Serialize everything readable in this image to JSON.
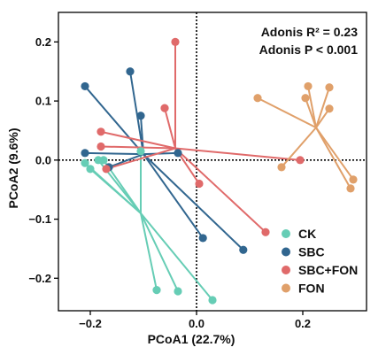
{
  "chart_data": {
    "type": "scatter",
    "title": "",
    "xlabel": "PCoA1 (22.7%)",
    "ylabel": "PCoA2 (9.6%)",
    "xlim": [
      -0.26,
      0.32
    ],
    "ylim": [
      -0.255,
      0.25
    ],
    "xticks": [
      -0.2,
      0.0,
      0.2
    ],
    "yticks": [
      -0.2,
      -0.1,
      0.0,
      0.1,
      0.2
    ],
    "xtick_labels": [
      "−0.2",
      "0.0",
      "0.2"
    ],
    "ytick_labels": [
      "−0.2",
      "−0.1",
      "0.0",
      "0.1",
      "0.2"
    ],
    "zero_lines": "dotted",
    "grid": false,
    "legend_position": "bottom-right",
    "annotations": {
      "adonis_r2": "Adonis R² = 0.23",
      "adonis_p": "Adonis P < 0.001"
    },
    "series": [
      {
        "name": "CK",
        "color": "#66CDB5",
        "centroid": [
          -0.105,
          -0.09
        ],
        "points": [
          [
            -0.21,
            -0.005
          ],
          [
            -0.2,
            -0.015
          ],
          [
            -0.185,
            0.0
          ],
          [
            -0.175,
            0.0
          ],
          [
            -0.105,
            0.015
          ],
          [
            -0.075,
            -0.22
          ],
          [
            -0.035,
            -0.222
          ],
          [
            0.03,
            -0.237
          ]
        ]
      },
      {
        "name": "SBC",
        "color": "#31668F",
        "centroid": [
          -0.1,
          0.01
        ],
        "points": [
          [
            -0.21,
            0.125
          ],
          [
            -0.125,
            0.15
          ],
          [
            -0.105,
            0.075
          ],
          [
            -0.21,
            0.012
          ],
          [
            -0.165,
            -0.012
          ],
          [
            -0.035,
            0.012
          ],
          [
            0.012,
            -0.132
          ],
          [
            0.088,
            -0.152
          ]
        ]
      },
      {
        "name": "SBC+FON",
        "color": "#E06A6A",
        "centroid": [
          -0.04,
          0.02
        ],
        "points": [
          [
            -0.04,
            0.2
          ],
          [
            -0.06,
            0.088
          ],
          [
            -0.18,
            0.048
          ],
          [
            -0.18,
            0.023
          ],
          [
            -0.17,
            -0.015
          ],
          [
            0.005,
            -0.04
          ],
          [
            0.195,
            0.0
          ],
          [
            0.13,
            -0.122
          ]
        ]
      },
      {
        "name": "FON",
        "color": "#E0A06A",
        "centroid": [
          0.225,
          0.055
        ],
        "points": [
          [
            0.115,
            0.105
          ],
          [
            0.205,
            0.105
          ],
          [
            0.21,
            0.125
          ],
          [
            0.25,
            0.123
          ],
          [
            0.25,
            0.087
          ],
          [
            0.16,
            -0.012
          ],
          [
            0.295,
            -0.033
          ],
          [
            0.29,
            -0.048
          ]
        ]
      }
    ]
  }
}
